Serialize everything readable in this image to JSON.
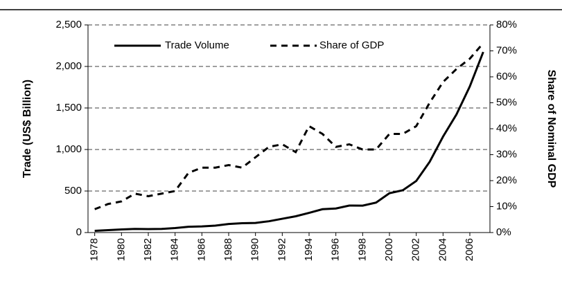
{
  "chart_data": {
    "type": "line",
    "x": [
      1978,
      1979,
      1980,
      1981,
      1982,
      1983,
      1984,
      1985,
      1986,
      1987,
      1988,
      1989,
      1990,
      1991,
      1992,
      1993,
      1994,
      1995,
      1996,
      1997,
      1998,
      1999,
      2000,
      2001,
      2002,
      2003,
      2004,
      2005,
      2006,
      2007
    ],
    "xlim": [
      1977.5,
      2007.5
    ],
    "xticks": [
      1978,
      1980,
      1982,
      1984,
      1986,
      1988,
      1990,
      1992,
      1994,
      1996,
      1998,
      2000,
      2002,
      2004,
      2006
    ],
    "y_label": "Trade (US$ Billion)",
    "y2_label": "Share of Nominal GDP",
    "ylim": [
      0,
      2500
    ],
    "yticks": [
      0,
      500,
      {
        "value": 1000,
        "label": "1,000"
      },
      {
        "value": 1500,
        "label": "1,500"
      },
      {
        "value": 2000,
        "label": "2,000"
      },
      {
        "value": 2500,
        "label": "2,500"
      }
    ],
    "y2lim": [
      0,
      80
    ],
    "y2ticks": [
      {
        "value": 0,
        "label": "0%"
      },
      {
        "value": 10,
        "label": "10%"
      },
      {
        "value": 20,
        "label": "20%"
      },
      {
        "value": 30,
        "label": "30%"
      },
      {
        "value": 40,
        "label": "40%"
      },
      {
        "value": 50,
        "label": "50%"
      },
      {
        "value": 60,
        "label": "60%"
      },
      {
        "value": 70,
        "label": "70%"
      },
      {
        "value": 80,
        "label": "80%"
      }
    ],
    "grid": true,
    "legend": "top",
    "series": [
      {
        "name": "Trade Volume",
        "color": "#000000",
        "dash": "solid",
        "values": [
          21,
          29,
          38,
          44,
          42,
          44,
          54,
          70,
          74,
          83,
          103,
          112,
          116,
          136,
          166,
          196,
          237,
          281,
          290,
          325,
          324,
          361,
          474,
          510,
          621,
          851,
          1155,
          1422,
          1760,
          2174
        ]
      },
      {
        "name": "Share of GDP",
        "color": "#000000",
        "dash": "dashed",
        "axis": "y2",
        "values": [
          9,
          11,
          12,
          15,
          14,
          15,
          16,
          23,
          25,
          25,
          26,
          25,
          29,
          33,
          34,
          31,
          41,
          38,
          33,
          34,
          32,
          32,
          38,
          38,
          41,
          50,
          58,
          63,
          67,
          73
        ]
      }
    ]
  }
}
